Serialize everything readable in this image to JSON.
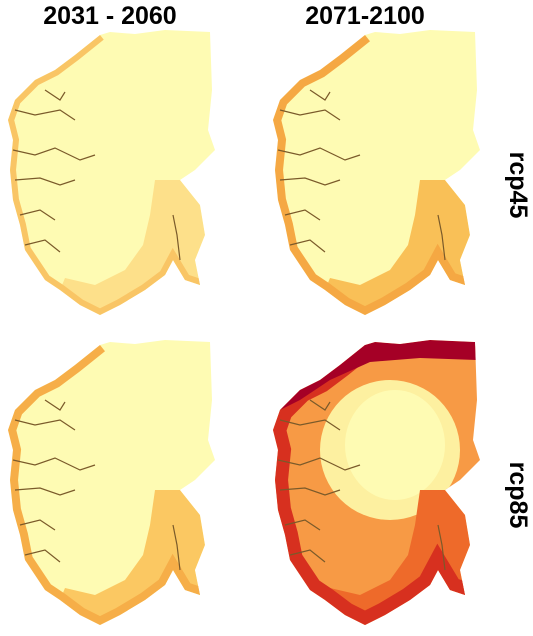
{
  "columns": [
    "2031 - 2060",
    "2071-2100"
  ],
  "rows": [
    "rcp45",
    "rcp85"
  ]
}
